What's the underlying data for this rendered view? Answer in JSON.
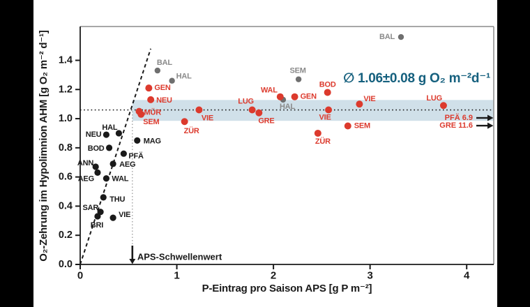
{
  "figure": {
    "mean_annotation": "∅ 1.06±0.08 g O₂ m⁻²d⁻¹",
    "mean_annotation_color": "#15607e",
    "threshold_label": "APS-Schwellenwert"
  },
  "chart_data": {
    "type": "scatter",
    "title": "",
    "xlabel": "P-Eintrag pro Saison APS [g P m⁻²]",
    "ylabel": "O₂-Zehrung im Hypolimnion AHM [g O₂ m⁻² d⁻¹]",
    "xlim": [
      0,
      4.28
    ],
    "ylim": [
      0,
      1.632
    ],
    "grid": false,
    "legend": "none",
    "xticks": [
      {
        "v": 0,
        "label": "0"
      },
      {
        "v": 1,
        "label": "1"
      },
      {
        "v": 2,
        "label": "2"
      },
      {
        "v": 3,
        "label": "3"
      },
      {
        "v": 4,
        "label": "4"
      }
    ],
    "yticks": [
      {
        "v": 0.0,
        "label": "0.0"
      },
      {
        "v": 0.2,
        "label": "0.2"
      },
      {
        "v": 0.4,
        "label": "0.4"
      },
      {
        "v": 0.6,
        "label": "0.6"
      },
      {
        "v": 0.8,
        "label": "0.8"
      },
      {
        "v": 1.0,
        "label": "1.0"
      },
      {
        "v": 1.2,
        "label": "1.2"
      },
      {
        "v": 1.4,
        "label": "1.4"
      }
    ],
    "mean_line": {
      "y": 1.06,
      "value_text": "∅ 1.06±0.08 g O₂ m⁻²d⁻¹"
    },
    "band": {
      "x0": 0.54,
      "x1": 4.28,
      "y0": 0.985,
      "y1": 1.128,
      "color": "#d0e0e9"
    },
    "threshold": {
      "x": 0.54,
      "label": "APS-Schwellenwert"
    },
    "dashed_line": {
      "x0": 0,
      "y0": 0,
      "x1": 0.73,
      "y1": 1.48
    },
    "offchart_arrows": [
      {
        "label": "PFÄ 6.9",
        "y": 1.005
      },
      {
        "label": "GRE 11.6",
        "y": 0.952
      }
    ],
    "series": [
      {
        "name": "black",
        "color": "#1a1a1a",
        "r": 4.6,
        "points": [
          {
            "label": "NEU",
            "x": 0.27,
            "y": 0.89,
            "anchor": "end",
            "dx": -7,
            "dy": 0
          },
          {
            "label": "HAL",
            "x": 0.4,
            "y": 0.9,
            "anchor": "end",
            "dx": -2,
            "dy": -8
          },
          {
            "label": "BOD",
            "x": 0.3,
            "y": 0.8,
            "anchor": "end",
            "dx": -7,
            "dy": 1
          },
          {
            "label": "MAG",
            "x": 0.59,
            "y": 0.85,
            "anchor": "start",
            "dx": 9,
            "dy": 1
          },
          {
            "label": "PFÄ",
            "x": 0.45,
            "y": 0.76,
            "anchor": "start",
            "dx": 7,
            "dy": 4
          },
          {
            "label": "AEG",
            "x": 0.34,
            "y": 0.69,
            "anchor": "start",
            "dx": 9,
            "dy": 1
          },
          {
            "label": "ANN",
            "x": 0.16,
            "y": 0.67,
            "anchor": "end",
            "dx": -3,
            "dy": -5
          },
          {
            "label": "AEG",
            "x": 0.18,
            "y": 0.63,
            "anchor": "end",
            "dx": -5,
            "dy": 9
          },
          {
            "label": "WAL",
            "x": 0.27,
            "y": 0.59,
            "anchor": "start",
            "dx": 8,
            "dy": 1
          },
          {
            "label": "THU",
            "x": 0.24,
            "y": 0.46,
            "anchor": "start",
            "dx": 9,
            "dy": 3
          },
          {
            "label": "SAR",
            "x": 0.21,
            "y": 0.36,
            "anchor": "end",
            "dx": -3,
            "dy": -6
          },
          {
            "label": "BRI",
            "x": 0.18,
            "y": 0.33,
            "anchor": "middle",
            "dx": -1,
            "dy": 13
          },
          {
            "label": "VIE",
            "x": 0.34,
            "y": 0.32,
            "anchor": "start",
            "dx": 8,
            "dy": -4
          }
        ]
      },
      {
        "name": "gray",
        "color": "#6f6f6f",
        "label_color": "#8a8a8a",
        "r": 4.2,
        "points": [
          {
            "label": "BAL",
            "x": 0.8,
            "y": 1.33,
            "anchor": "middle",
            "dx": 10,
            "dy": -11
          },
          {
            "label": "HAL",
            "x": 0.95,
            "y": 1.26,
            "anchor": "start",
            "dx": 6,
            "dy": -6
          },
          {
            "label": "HAL",
            "x": 2.1,
            "y": 1.13,
            "anchor": "middle",
            "dx": 6,
            "dy": 10
          },
          {
            "label": "SEM",
            "x": 2.26,
            "y": 1.27,
            "anchor": "middle",
            "dx": -1,
            "dy": -12
          },
          {
            "label": "BAL",
            "x": 3.32,
            "y": 1.56,
            "anchor": "end",
            "dx": -9,
            "dy": 0
          }
        ]
      },
      {
        "name": "red",
        "color": "#dc3a2d",
        "r": 5,
        "points": [
          {
            "label": "GEN",
            "x": 0.71,
            "y": 1.21,
            "anchor": "start",
            "dx": 8,
            "dy": 0
          },
          {
            "label": "NEU",
            "x": 0.73,
            "y": 1.13,
            "anchor": "start",
            "dx": 8,
            "dy": 1
          },
          {
            "label": "MÜR",
            "x": 0.61,
            "y": 1.05,
            "anchor": "start",
            "dx": 7,
            "dy": 2
          },
          {
            "label": "SEM",
            "x": 0.63,
            "y": 1.03,
            "anchor": "start",
            "dx": 3,
            "dy": 11
          },
          {
            "label": "ZÜR",
            "x": 1.08,
            "y": 0.98,
            "anchor": "middle",
            "dx": 10,
            "dy": 14
          },
          {
            "label": "VIE",
            "x": 1.23,
            "y": 1.06,
            "anchor": "middle",
            "dx": 12,
            "dy": 12
          },
          {
            "label": "LUG",
            "x": 1.78,
            "y": 1.06,
            "anchor": "middle",
            "dx": -9,
            "dy": -12
          },
          {
            "label": "GRE",
            "x": 1.85,
            "y": 1.04,
            "anchor": "start",
            "dx": -1,
            "dy": 12
          },
          {
            "label": "WAL",
            "x": 2.07,
            "y": 1.15,
            "anchor": "end",
            "dx": -4,
            "dy": -9
          },
          {
            "label": "GEN",
            "x": 2.22,
            "y": 1.15,
            "anchor": "start",
            "dx": 8,
            "dy": 0
          },
          {
            "label": "BOD",
            "x": 2.56,
            "y": 1.18,
            "anchor": "middle",
            "dx": 0,
            "dy": -11
          },
          {
            "label": "VIE",
            "x": 2.57,
            "y": 1.06,
            "anchor": "middle",
            "dx": -5,
            "dy": 11
          },
          {
            "label": "ZÜR",
            "x": 2.46,
            "y": 0.9,
            "anchor": "middle",
            "dx": 7,
            "dy": 12
          },
          {
            "label": "SEM",
            "x": 2.77,
            "y": 0.95,
            "anchor": "start",
            "dx": 9,
            "dy": 0
          },
          {
            "label": "VIE",
            "x": 2.89,
            "y": 1.1,
            "anchor": "start",
            "dx": 6,
            "dy": -7
          },
          {
            "label": "LUG",
            "x": 3.76,
            "y": 1.09,
            "anchor": "end",
            "dx": -2,
            "dy": -10
          }
        ]
      }
    ],
    "colors": {
      "band": "#d0e0e9",
      "mean_text": "#15607e",
      "axis": "#1a1a1a",
      "box_border": "#8c8c8c",
      "threshold_line": "#9a9a9a"
    }
  }
}
